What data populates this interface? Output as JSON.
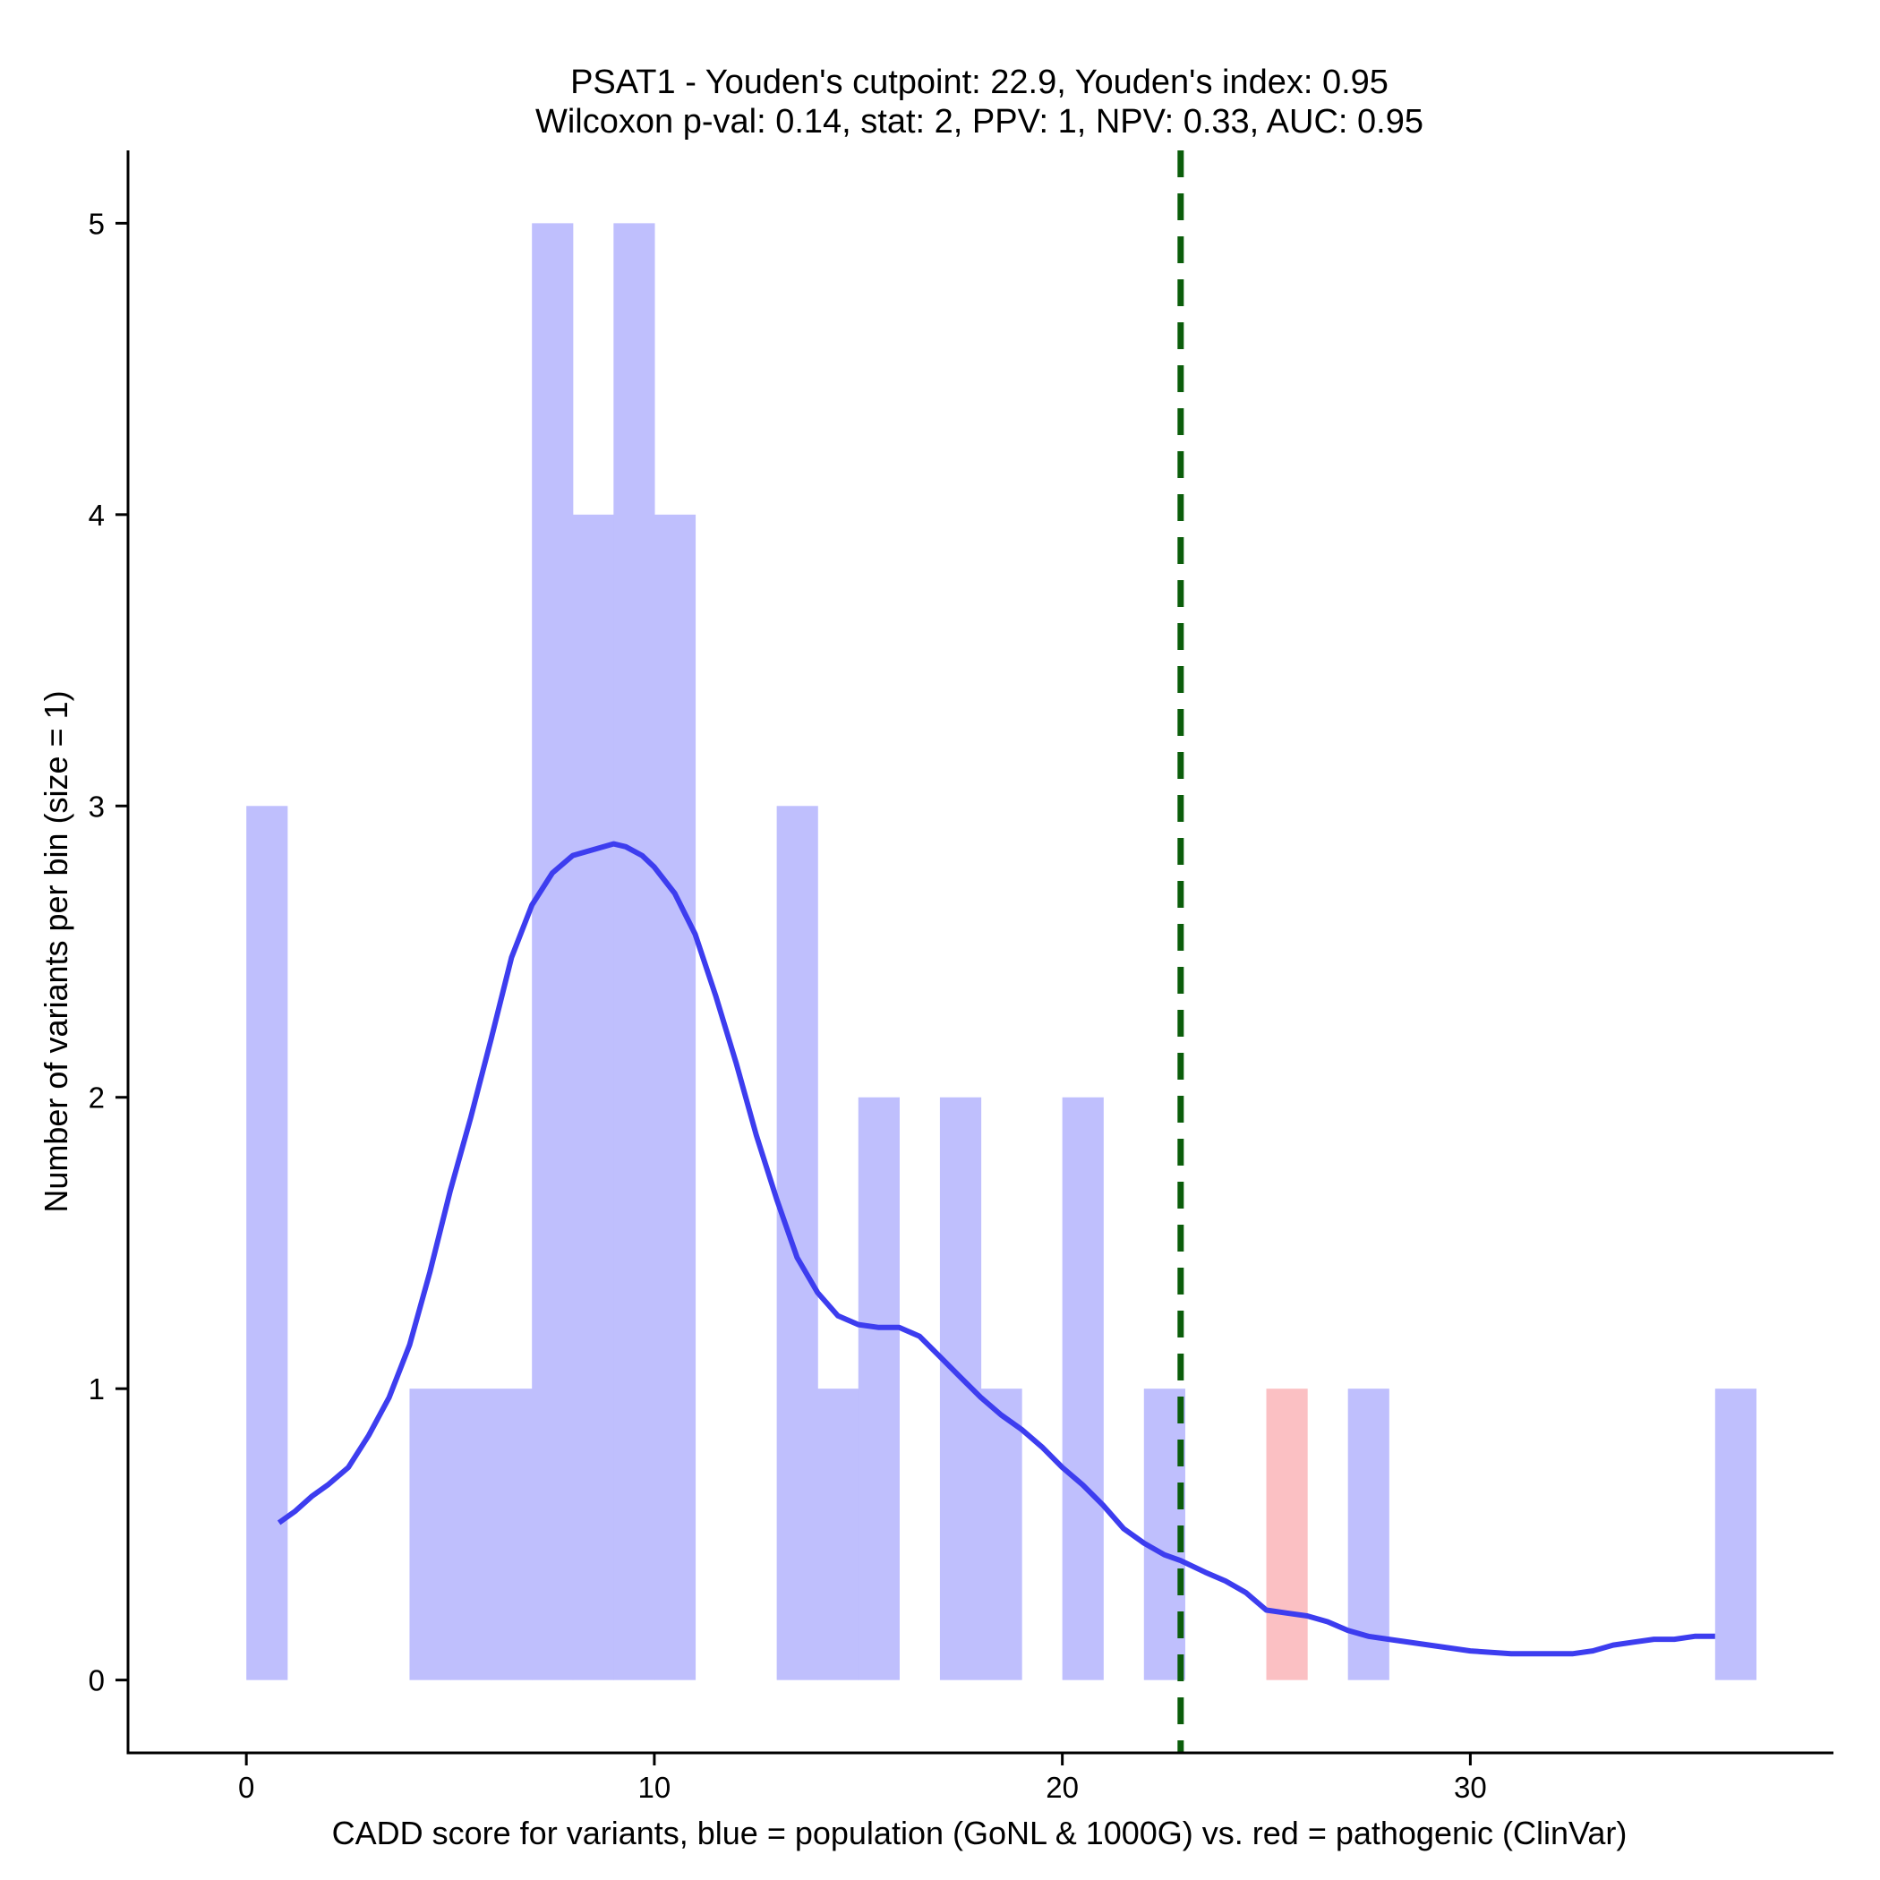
{
  "chart_data": {
    "type": "bar",
    "title": "PSAT1 - Youden's cutpoint: 22.9, Youden's index: 0.95",
    "subtitle": "Wilcoxon p-val: 0.14, stat: 2, PPV: 1, NPV: 0.33, AUC: 0.95",
    "xlabel": "CADD score for variants, blue = population (GoNL & 1000G) vs. red = pathogenic (ClinVar)",
    "ylabel": "Number of variants per bin (size = 1)",
    "xlim": [
      -2.9,
      38.9
    ],
    "ylim": [
      -0.25,
      5.25
    ],
    "x_ticks": [
      0,
      10,
      20,
      30
    ],
    "y_ticks": [
      0,
      1,
      2,
      3,
      4,
      5
    ],
    "bin_size": 1,
    "series": [
      {
        "name": "population (GoNL & 1000G)",
        "color": "#bfbffd",
        "bins": [
          {
            "x0": 0,
            "count": 3
          },
          {
            "x0": 4,
            "count": 1
          },
          {
            "x0": 5,
            "count": 1
          },
          {
            "x0": 6,
            "count": 1
          },
          {
            "x0": 7,
            "count": 5
          },
          {
            "x0": 8,
            "count": 4
          },
          {
            "x0": 9,
            "count": 5
          },
          {
            "x0": 10,
            "count": 4
          },
          {
            "x0": 13,
            "count": 3
          },
          {
            "x0": 14,
            "count": 1
          },
          {
            "x0": 15,
            "count": 2
          },
          {
            "x0": 17,
            "count": 2
          },
          {
            "x0": 18,
            "count": 1
          },
          {
            "x0": 20,
            "count": 2
          },
          {
            "x0": 22,
            "count": 1
          },
          {
            "x0": 27,
            "count": 1
          },
          {
            "x0": 36,
            "count": 1
          }
        ]
      },
      {
        "name": "pathogenic (ClinVar)",
        "color": "#fbc0c3",
        "bins": [
          {
            "x0": 25,
            "count": 1
          }
        ]
      }
    ],
    "density_curve": {
      "color": "#3d3def",
      "x": [
        0.8,
        1.2,
        1.6,
        2.0,
        2.5,
        3.0,
        3.5,
        4.0,
        4.5,
        5.0,
        5.5,
        6.0,
        6.5,
        7.0,
        7.5,
        8.0,
        8.5,
        9.0,
        9.3,
        9.7,
        10.0,
        10.5,
        11.0,
        11.5,
        12.0,
        12.5,
        13.0,
        13.5,
        14.0,
        14.5,
        15.0,
        15.5,
        16.0,
        16.5,
        17.0,
        17.5,
        18.0,
        18.5,
        19.0,
        19.5,
        20.0,
        20.5,
        21.0,
        21.5,
        22.0,
        22.5,
        22.9,
        23.5,
        24.0,
        24.5,
        25.0,
        25.5,
        26.0,
        26.5,
        27.0,
        27.5,
        28.0,
        29.0,
        30.0,
        31.0,
        31.5,
        32.0,
        32.5,
        33.0,
        33.5,
        34.0,
        34.5,
        35.0,
        35.5,
        36.0
      ],
      "y": [
        0.54,
        0.58,
        0.63,
        0.67,
        0.73,
        0.84,
        0.97,
        1.15,
        1.4,
        1.68,
        1.93,
        2.2,
        2.48,
        2.66,
        2.77,
        2.83,
        2.85,
        2.87,
        2.86,
        2.83,
        2.79,
        2.7,
        2.56,
        2.35,
        2.12,
        1.87,
        1.65,
        1.45,
        1.33,
        1.25,
        1.22,
        1.21,
        1.21,
        1.18,
        1.11,
        1.04,
        0.97,
        0.91,
        0.86,
        0.8,
        0.73,
        0.67,
        0.6,
        0.52,
        0.47,
        0.43,
        0.41,
        0.37,
        0.34,
        0.3,
        0.24,
        0.23,
        0.22,
        0.2,
        0.17,
        0.15,
        0.14,
        0.12,
        0.1,
        0.09,
        0.09,
        0.09,
        0.09,
        0.1,
        0.12,
        0.13,
        0.14,
        0.14,
        0.15,
        0.15
      ]
    },
    "cutpoint": {
      "x": 22.9,
      "color": "#0b5d0b"
    },
    "grid": false,
    "legend": "none"
  }
}
